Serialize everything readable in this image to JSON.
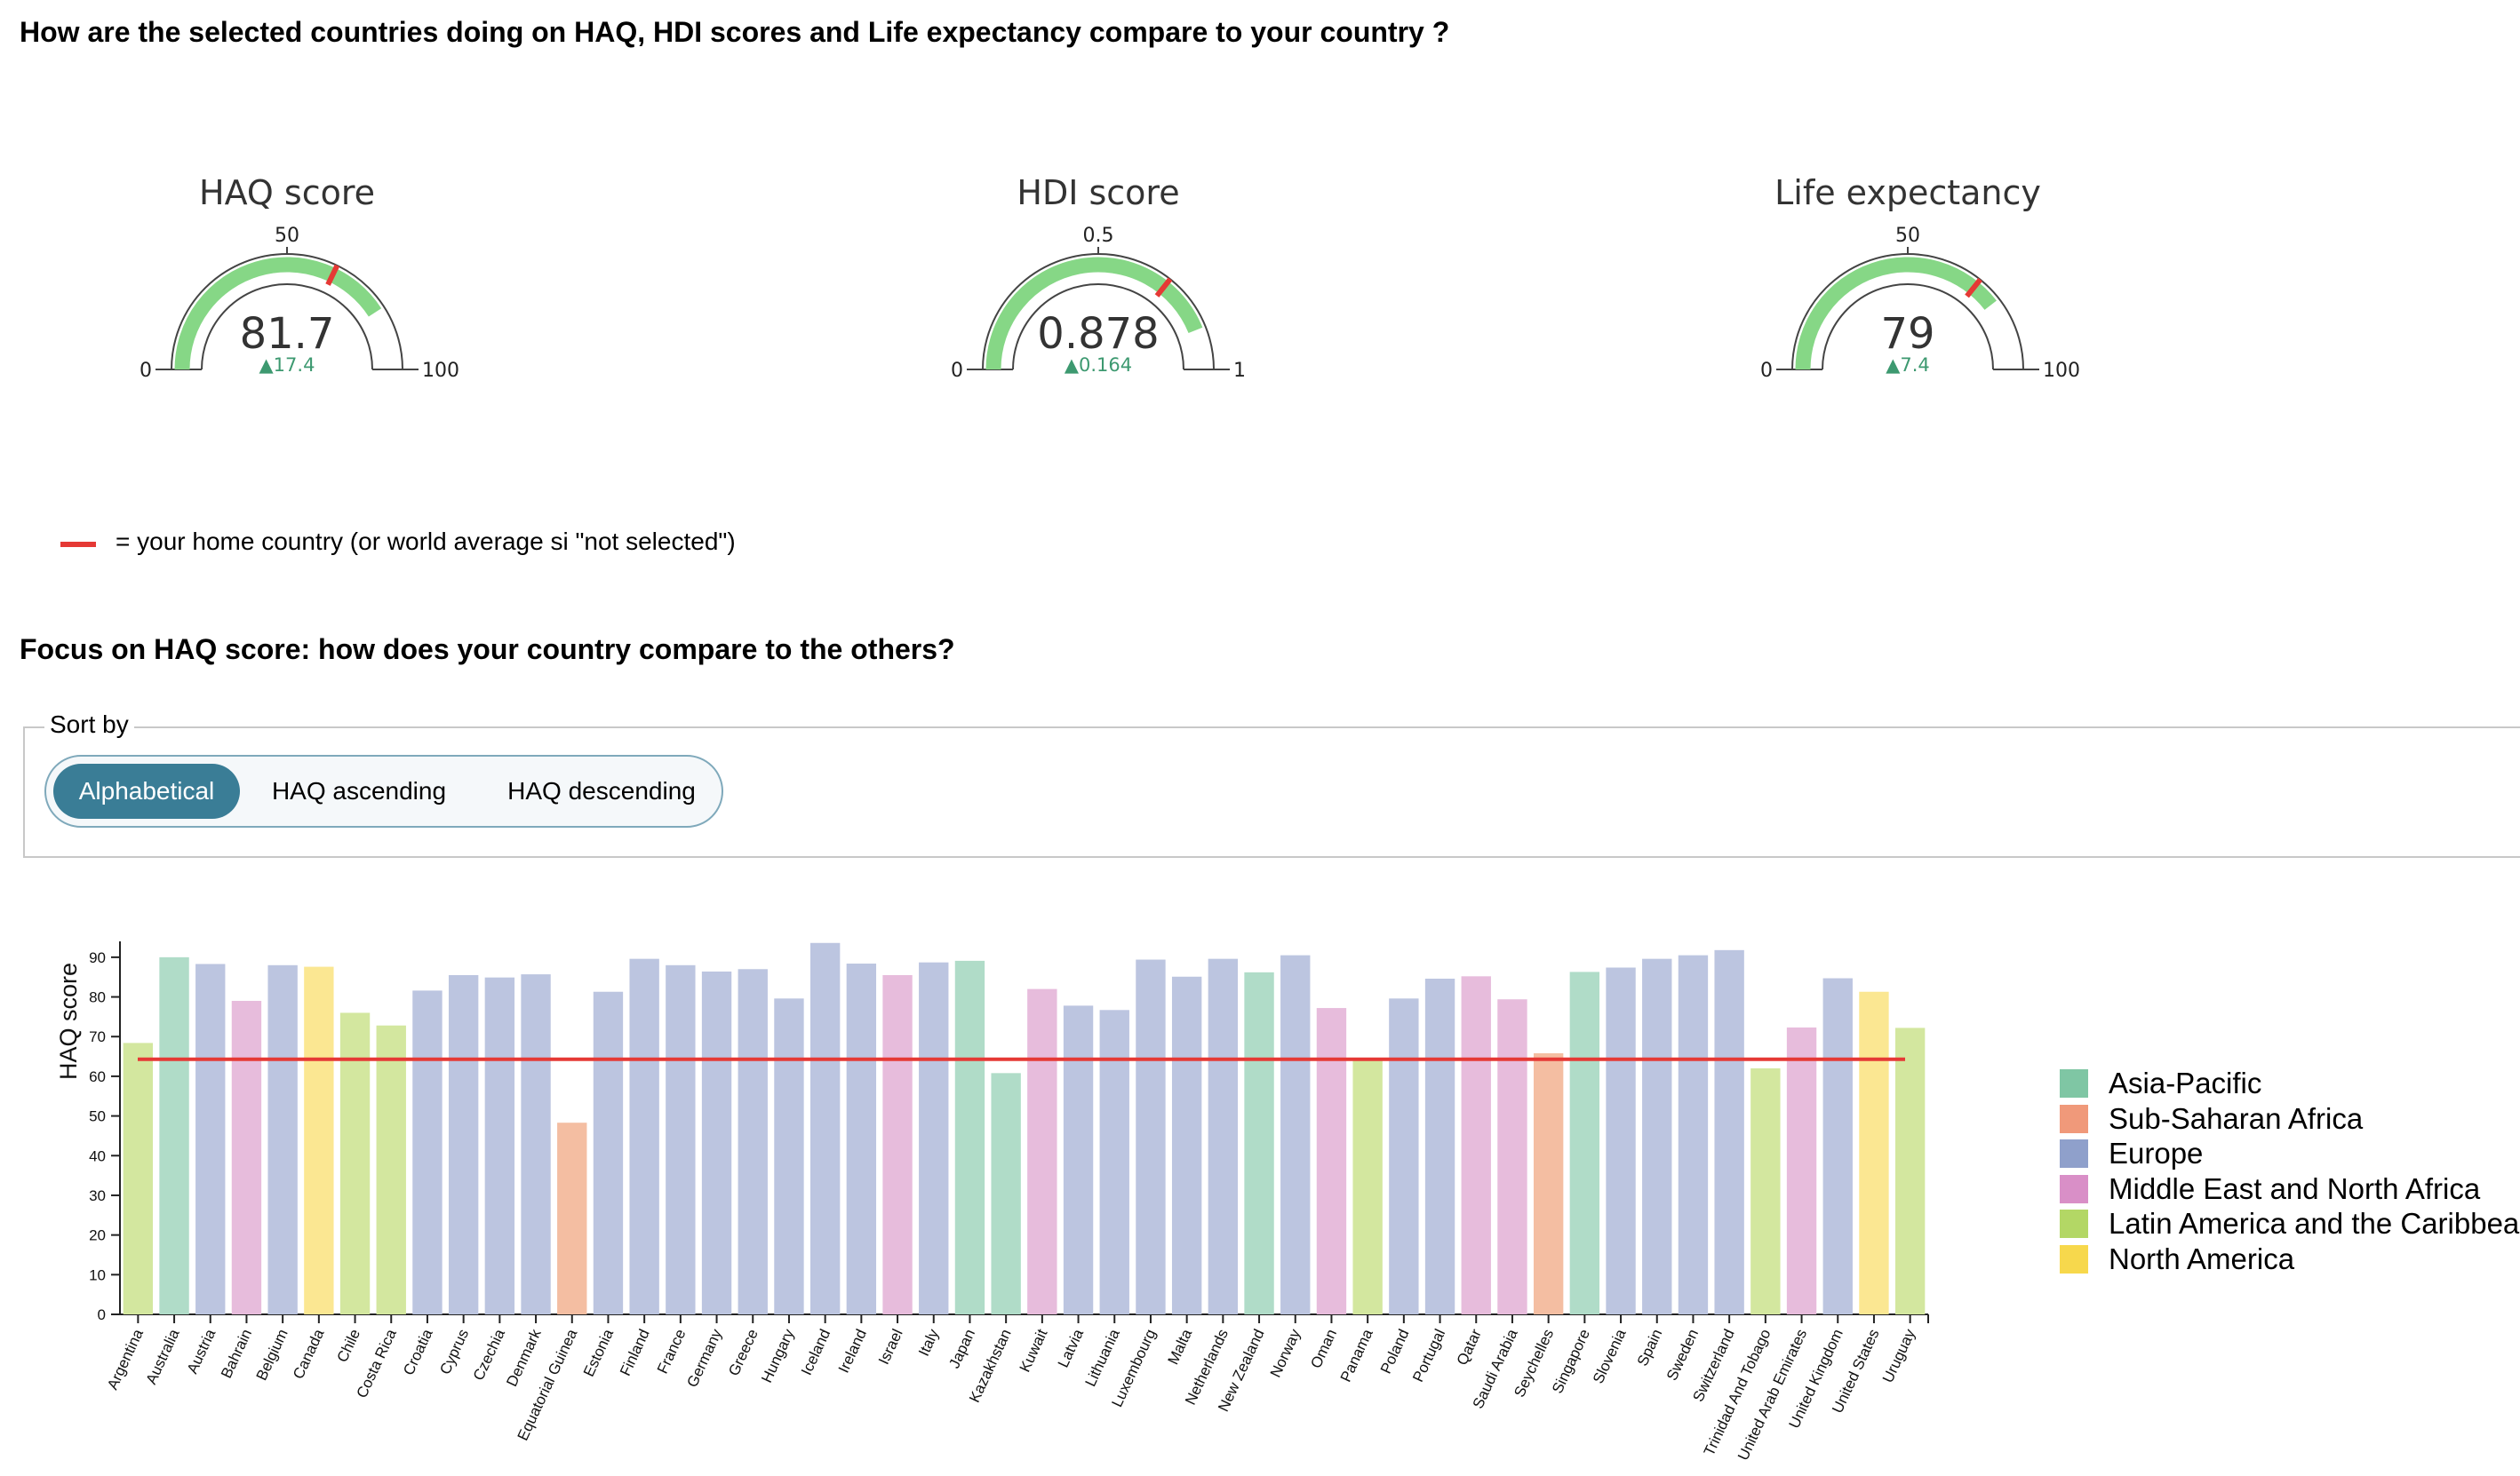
{
  "header": {
    "title": "How are the selected countries doing on HAQ, HDI scores and Life expectancy compare to your country ?"
  },
  "gauges": [
    {
      "title": "HAQ score",
      "min": 0,
      "max": 100,
      "min_label": "0",
      "mid_label": "50",
      "max_label": "100",
      "value": 81.7,
      "value_label": "81.7",
      "reference": 64.3,
      "delta_label": "▲17.4"
    },
    {
      "title": "HDI score",
      "min": 0,
      "max": 1,
      "min_label": "0",
      "mid_label": "0.5",
      "max_label": "1",
      "value": 0.878,
      "value_label": "0.878",
      "reference": 0.714,
      "delta_label": "▲0.164"
    },
    {
      "title": "Life expectancy",
      "min": 0,
      "max": 100,
      "min_label": "0",
      "mid_label": "50",
      "max_label": "100",
      "value": 79,
      "value_label": "79",
      "reference": 71.6,
      "delta_label": "▲7.4"
    }
  ],
  "colors": {
    "gauge_bar": "#86d786",
    "gauge_reference": "#e53935",
    "delta": "#3d9970",
    "reference_line": "#e53935",
    "toggle_active": "#3a7d96"
  },
  "legend_note": "= your home country (or world average si \"not selected\")",
  "focus_title": "Focus on HAQ score: how does your country compare to the others?",
  "sort": {
    "legend": "Sort by",
    "options": [
      "Alphabetical",
      "HAQ ascending",
      "HAQ descending"
    ],
    "selected": "Alphabetical"
  },
  "regions": [
    {
      "name": "Asia-Pacific",
      "color": "#b0dcc8",
      "legend_color": "#7fc6a4"
    },
    {
      "name": "Sub-Saharan Africa",
      "color": "#f4bea2",
      "legend_color": "#f0997a"
    },
    {
      "name": "Europe",
      "color": "#bcc5e0",
      "legend_color": "#8fa0cb"
    },
    {
      "name": "Middle East and North Africa",
      "color": "#e7bcdc",
      "legend_color": "#d98fc7"
    },
    {
      "name": "Latin America and the Caribbean",
      "color": "#d3e79f",
      "legend_color": "#b3d765"
    },
    {
      "name": "North America",
      "color": "#fbe792",
      "legend_color": "#f7d84c"
    }
  ],
  "chart_data": {
    "type": "bar",
    "ylabel": "HAQ score",
    "xlabel": "",
    "ylim": [
      0,
      94
    ],
    "yticks": [
      0,
      10,
      20,
      30,
      40,
      50,
      60,
      70,
      80,
      90
    ],
    "reference_value": 64.3,
    "categories": [
      "Argentina",
      "Australia",
      "Austria",
      "Bahrain",
      "Belgium",
      "Canada",
      "Chile",
      "Costa Rica",
      "Croatia",
      "Cyprus",
      "Czechia",
      "Denmark",
      "Equatorial Guinea",
      "Estonia",
      "Finland",
      "France",
      "Germany",
      "Greece",
      "Hungary",
      "Iceland",
      "Ireland",
      "Israel",
      "Italy",
      "Japan",
      "Kazakhstan",
      "Kuwait",
      "Latvia",
      "Lithuania",
      "Luxembourg",
      "Malta",
      "Netherlands",
      "New Zealand",
      "Norway",
      "Oman",
      "Panama",
      "Poland",
      "Portugal",
      "Qatar",
      "Saudi Arabia",
      "Seychelles",
      "Singapore",
      "Slovenia",
      "Spain",
      "Sweden",
      "Switzerland",
      "Trinidad And Tobago",
      "United Arab Emirates",
      "United Kingdom",
      "United States",
      "Uruguay"
    ],
    "values": [
      68.4,
      90.0,
      88.3,
      79.0,
      88.0,
      87.6,
      76.0,
      72.8,
      81.6,
      85.5,
      84.9,
      85.7,
      48.3,
      81.3,
      89.6,
      88.0,
      86.4,
      87.0,
      79.6,
      93.6,
      88.4,
      85.5,
      88.7,
      89.1,
      60.8,
      82.0,
      77.8,
      76.7,
      89.4,
      85.1,
      89.6,
      86.2,
      90.5,
      77.2,
      64.3,
      79.6,
      84.6,
      85.2,
      79.4,
      65.8,
      86.3,
      87.4,
      89.6,
      90.5,
      91.8,
      62.0,
      72.3,
      84.7,
      81.3,
      72.2
    ],
    "regions": [
      "Latin America and the Caribbean",
      "Asia-Pacific",
      "Europe",
      "Middle East and North Africa",
      "Europe",
      "North America",
      "Latin America and the Caribbean",
      "Latin America and the Caribbean",
      "Europe",
      "Europe",
      "Europe",
      "Europe",
      "Sub-Saharan Africa",
      "Europe",
      "Europe",
      "Europe",
      "Europe",
      "Europe",
      "Europe",
      "Europe",
      "Europe",
      "Middle East and North Africa",
      "Europe",
      "Asia-Pacific",
      "Asia-Pacific",
      "Middle East and North Africa",
      "Europe",
      "Europe",
      "Europe",
      "Europe",
      "Europe",
      "Asia-Pacific",
      "Europe",
      "Middle East and North Africa",
      "Latin America and the Caribbean",
      "Europe",
      "Europe",
      "Middle East and North Africa",
      "Middle East and North Africa",
      "Sub-Saharan Africa",
      "Asia-Pacific",
      "Europe",
      "Europe",
      "Europe",
      "Europe",
      "Latin America and the Caribbean",
      "Middle East and North Africa",
      "Europe",
      "North America",
      "Latin America and the Caribbean"
    ],
    "legend_position": "right"
  }
}
